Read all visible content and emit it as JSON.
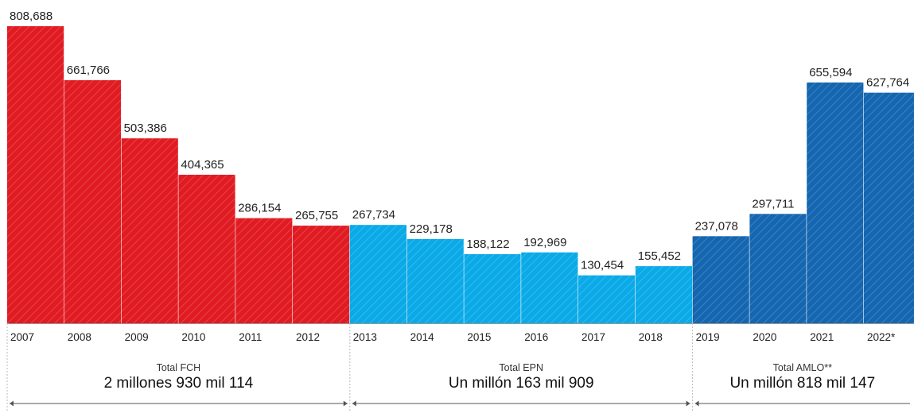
{
  "colors": {
    "fch": "#e11b22",
    "epn": "#0aaae8",
    "amlo": "#1466b0",
    "axis": "#999999",
    "divider": "#bbbbbb",
    "text": "#222222"
  },
  "chart_data": {
    "type": "bar",
    "title": "",
    "xlabel": "",
    "ylabel": "",
    "ylim": [
      0,
      808688
    ],
    "grid": false,
    "categories": [
      "2007",
      "2008",
      "2009",
      "2010",
      "2011",
      "2012",
      "2013",
      "2014",
      "2015",
      "2016",
      "2017",
      "2018",
      "2019",
      "2020",
      "2021",
      "2022*"
    ],
    "values": [
      808688,
      661766,
      503386,
      404365,
      286154,
      265755,
      267734,
      229178,
      188122,
      192969,
      130454,
      155452,
      237078,
      297711,
      655594,
      627764
    ],
    "value_labels": [
      "808,688",
      "661,766",
      "503,386",
      "404,365",
      "286,154",
      "265,755",
      "267,734",
      "229,178",
      "188,122",
      "192,969",
      "130,454",
      "155,452",
      "237,078",
      "297,711",
      "655,594",
      "627,764"
    ],
    "groups": [
      {
        "key": "fch",
        "start": 0,
        "end": 5,
        "total_title": "Total FCH",
        "total_value": "2 millones 930 mil 114"
      },
      {
        "key": "epn",
        "start": 6,
        "end": 11,
        "total_title": "Total EPN",
        "total_value": "Un millón 163 mil 909"
      },
      {
        "key": "amlo",
        "start": 12,
        "end": 15,
        "total_title": "Total AMLO**",
        "total_value": "Un millón 818 mil 147"
      }
    ]
  }
}
